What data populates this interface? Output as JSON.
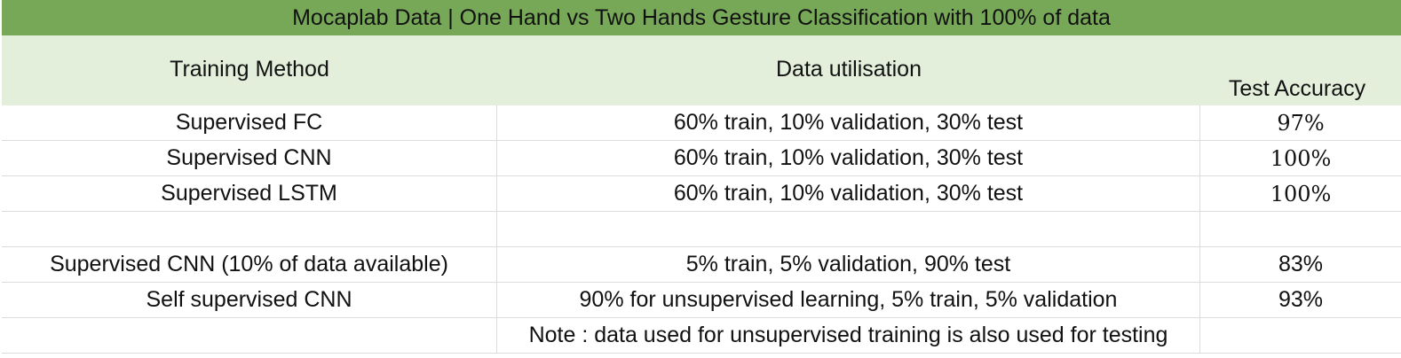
{
  "title": "Mocaplab Data | One Hand vs Two Hands Gesture Classification with 100% of data",
  "columns": {
    "method": "Training Method",
    "utilisation": "Data utilisation",
    "accuracy": "Test Accuracy"
  },
  "rows": [
    {
      "method": "Supervised FC",
      "utilisation": "60% train, 10% validation, 30% test",
      "accuracy": "97%"
    },
    {
      "method": "Supervised CNN",
      "utilisation": "60% train, 10% validation, 30% test",
      "accuracy": "100%"
    },
    {
      "method": "Supervised LSTM",
      "utilisation": "60% train, 10% validation, 30% test",
      "accuracy": "100%"
    },
    {
      "method": "",
      "utilisation": "",
      "accuracy": ""
    },
    {
      "method": "Supervised CNN (10% of data available)",
      "utilisation": "5% train, 5% validation, 90% test",
      "accuracy": "83%"
    },
    {
      "method": "Self supervised CNN",
      "utilisation": "90% for unsupervised learning, 5% train, 5% validation",
      "accuracy": "93%"
    },
    {
      "method": "",
      "utilisation": "Note : data used for unsupervised training is also used for testing",
      "accuracy": ""
    }
  ]
}
